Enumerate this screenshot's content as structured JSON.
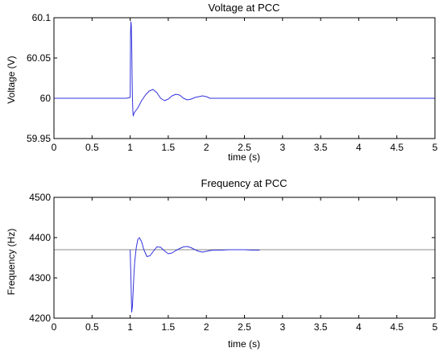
{
  "chart_data": [
    {
      "type": "line",
      "title": "Voltage at PCC",
      "xlabel": "time (s)",
      "ylabel": "Voltage (V)",
      "xlim": [
        0,
        5
      ],
      "ylim": [
        59.95,
        60.1
      ],
      "xticks": [
        0,
        0.5,
        1,
        1.5,
        2,
        2.5,
        3,
        3.5,
        4,
        4.5,
        5
      ],
      "xtick_labels": [
        "0",
        "0.5",
        "1",
        "1.5",
        "2",
        "2.5",
        "3",
        "3.5",
        "4",
        "4.5",
        "5"
      ],
      "yticks": [
        59.95,
        60,
        60.05,
        60.1
      ],
      "ytick_labels": [
        "59.95",
        "60",
        "60.05",
        "60.1"
      ],
      "grid": false,
      "series": [
        {
          "color": "#3333dd",
          "x": [
            0,
            0.95,
            1.0,
            1.005,
            1.01,
            1.015,
            1.02,
            1.025,
            1.03,
            1.035,
            1.04,
            1.045,
            1.06,
            1.1,
            1.15,
            1.2,
            1.25,
            1.3,
            1.35,
            1.4,
            1.45,
            1.5,
            1.55,
            1.6,
            1.65,
            1.7,
            1.75,
            1.8,
            1.85,
            1.9,
            1.95,
            2.0,
            2.05,
            2.1,
            2.2,
            2.5,
            3.0,
            3.5,
            4.0,
            4.5,
            5.0
          ],
          "y": [
            60.0,
            60.0,
            60.001,
            60.08,
            60.095,
            60.09,
            60.07,
            60.03,
            60.0,
            59.985,
            59.978,
            59.98,
            59.983,
            59.988,
            59.997,
            60.004,
            60.009,
            60.011,
            60.007,
            60.0,
            59.997,
            59.999,
            60.003,
            60.005,
            60.004,
            60.0,
            59.998,
            59.999,
            60.001,
            60.002,
            60.003,
            60.002,
            60.0,
            60.0,
            60.0,
            60.0,
            60.0,
            60.0,
            60.0,
            60.0,
            60.0
          ]
        }
      ]
    },
    {
      "type": "line",
      "title": "Frequency at PCC",
      "xlabel": "time (s)",
      "ylabel": "Frequency (Hz)",
      "xlim": [
        0,
        5
      ],
      "ylim": [
        4200,
        4500
      ],
      "xticks": [
        0,
        0.5,
        1,
        1.5,
        2,
        2.5,
        3,
        3.5,
        4,
        4.5,
        5
      ],
      "xtick_labels": [
        "0",
        "0.5",
        "1",
        "1.5",
        "2",
        "2.5",
        "3",
        "3.5",
        "4",
        "4.5",
        "5"
      ],
      "yticks": [
        4200,
        4300,
        4400,
        4500
      ],
      "ytick_labels": [
        "4200",
        "4300",
        "4400",
        "4500"
      ],
      "grid": false,
      "series": [
        {
          "color": "#888888",
          "x": [
            0,
            5
          ],
          "y": [
            4370,
            4370
          ]
        },
        {
          "color": "#3333dd",
          "x": [
            1.0,
            1.01,
            1.02,
            1.03,
            1.04,
            1.05,
            1.06,
            1.08,
            1.1,
            1.12,
            1.15,
            1.18,
            1.22,
            1.26,
            1.3,
            1.35,
            1.4,
            1.45,
            1.5,
            1.55,
            1.6,
            1.65,
            1.7,
            1.75,
            1.8,
            1.85,
            1.9,
            1.95,
            2.0,
            2.05,
            2.1,
            2.2,
            2.3,
            2.5,
            2.6,
            2.7
          ],
          "y": [
            4370,
            4300,
            4215,
            4230,
            4270,
            4310,
            4340,
            4375,
            4395,
            4400,
            4390,
            4370,
            4353,
            4355,
            4365,
            4377,
            4376,
            4367,
            4360,
            4362,
            4368,
            4373,
            4377,
            4378,
            4375,
            4370,
            4366,
            4364,
            4366,
            4368,
            4369,
            4369,
            4370,
            4370,
            4369,
            4369
          ]
        }
      ]
    }
  ]
}
